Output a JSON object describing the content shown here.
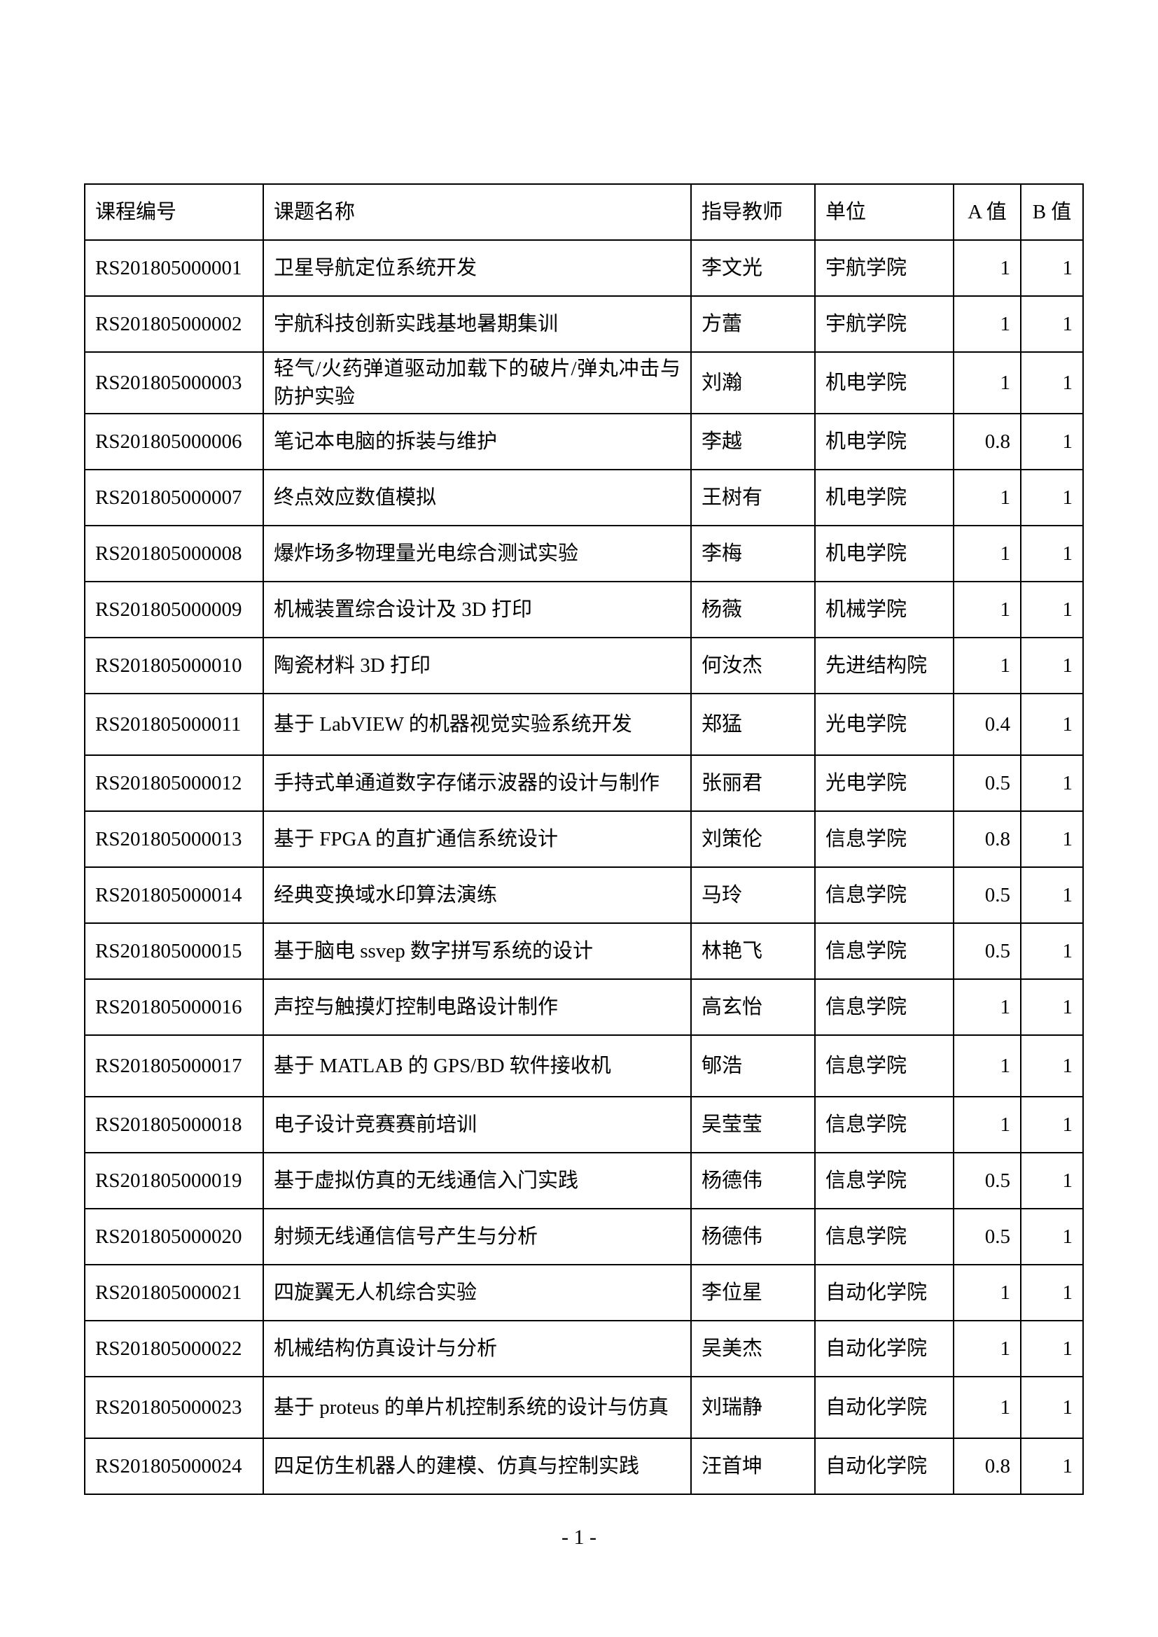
{
  "table": {
    "headers": [
      "课程编号",
      "课题名称",
      "指导教师",
      "单位",
      "A 值",
      "B 值"
    ],
    "rows": [
      [
        "RS201805000001",
        "卫星导航定位系统开发",
        "李文光",
        "宇航学院",
        "1",
        "1"
      ],
      [
        "RS201805000002",
        "宇航科技创新实践基地暑期集训",
        "方蕾",
        "宇航学院",
        "1",
        "1"
      ],
      [
        "RS201805000003",
        "轻气/火药弹道驱动加载下的破片/弹丸冲击与防护实验",
        "刘瀚",
        "机电学院",
        "1",
        "1"
      ],
      [
        "RS201805000006",
        "笔记本电脑的拆装与维护",
        "李越",
        "机电学院",
        "0.8",
        "1"
      ],
      [
        "RS201805000007",
        "终点效应数值模拟",
        "王树有",
        "机电学院",
        "1",
        "1"
      ],
      [
        "RS201805000008",
        "爆炸场多物理量光电综合测试实验",
        "李梅",
        "机电学院",
        "1",
        "1"
      ],
      [
        "RS201805000009",
        "机械装置综合设计及 3D 打印",
        "杨薇",
        "机械学院",
        "1",
        "1"
      ],
      [
        "RS201805000010",
        "陶瓷材料 3D 打印",
        "何汝杰",
        "先进结构院",
        "1",
        "1"
      ],
      [
        "RS201805000011",
        "基于 LabVIEW 的机器视觉实验系统开发",
        "郑猛",
        "光电学院",
        "0.4",
        "1"
      ],
      [
        "RS201805000012",
        "手持式单通道数字存储示波器的设计与制作",
        "张丽君",
        "光电学院",
        "0.5",
        "1"
      ],
      [
        "RS201805000013",
        "基于 FPGA 的直扩通信系统设计",
        "刘策伦",
        "信息学院",
        "0.8",
        "1"
      ],
      [
        "RS201805000014",
        "经典变换域水印算法演练",
        "马玲",
        "信息学院",
        "0.5",
        "1"
      ],
      [
        "RS201805000015",
        "基于脑电 ssvep 数字拼写系统的设计",
        "林艳飞",
        "信息学院",
        "0.5",
        "1"
      ],
      [
        "RS201805000016",
        "声控与触摸灯控制电路设计制作",
        "高玄怡",
        "信息学院",
        "1",
        "1"
      ],
      [
        "RS201805000017",
        "基于 MATLAB 的 GPS/BD 软件接收机",
        "郇浩",
        "信息学院",
        "1",
        "1"
      ],
      [
        "RS201805000018",
        "电子设计竞赛赛前培训",
        "吴莹莹",
        "信息学院",
        "1",
        "1"
      ],
      [
        "RS201805000019",
        "基于虚拟仿真的无线通信入门实践",
        "杨德伟",
        "信息学院",
        "0.5",
        "1"
      ],
      [
        "RS201805000020",
        "射频无线通信信号产生与分析",
        "杨德伟",
        "信息学院",
        "0.5",
        "1"
      ],
      [
        "RS201805000021",
        "四旋翼无人机综合实验",
        "李位星",
        "自动化学院",
        "1",
        "1"
      ],
      [
        "RS201805000022",
        "机械结构仿真设计与分析",
        "吴美杰",
        "自动化学院",
        "1",
        "1"
      ],
      [
        "RS201805000023",
        "基于 proteus 的单片机控制系统的设计与仿真",
        "刘瑞静",
        "自动化学院",
        "1",
        "1"
      ],
      [
        "RS201805000024",
        "四足仿生机器人的建模、仿真与控制实践",
        "汪首坤",
        "自动化学院",
        "0.8",
        "1"
      ]
    ]
  },
  "footer": {
    "page_number": "- 1 -"
  }
}
